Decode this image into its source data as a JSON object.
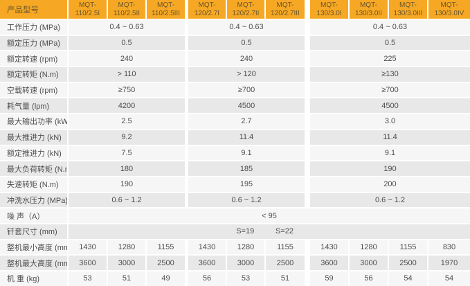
{
  "colors": {
    "header_bg": "#F6A825",
    "header_text": "#6A5729",
    "row_light": "#F6F6F6",
    "row_dark": "#E8E8E8",
    "body_text": "#4D4D4D",
    "separator": "#FFFFFF"
  },
  "table": {
    "header": {
      "label": "产品型号",
      "columns": [
        "MQT-110/2.5I",
        "MQT-110/2.5II",
        "MQT-110/2.5III",
        "MQT-120/2.7I",
        "MQT-120/2.7II",
        "MQT-120/2.7III",
        "MQT-130/3.0I",
        "MQT-130/3.0II",
        "MQT-130/3.0III",
        "MQT-130/3.0IV"
      ]
    },
    "column_groups": [
      "MQT-110/2.5",
      "MQT-120/2.7",
      "MQT-130/3.0"
    ],
    "rows": [
      {
        "label": "工作压力 (MPa)",
        "type": "grouped",
        "values": [
          "0.4 ~ 0.63",
          "0.4 ~ 0.63",
          "0.4 ~ 0.63"
        ]
      },
      {
        "label": "额定压力 (MPa)",
        "type": "grouped",
        "values": [
          "0.5",
          "0.5",
          "0.5"
        ]
      },
      {
        "label": "额定转速 (rpm)",
        "type": "grouped",
        "values": [
          "240",
          "240",
          "225"
        ]
      },
      {
        "label": "额定转矩 (N.m)",
        "type": "grouped",
        "values": [
          "> 110",
          "> 120",
          "≥130"
        ]
      },
      {
        "label": "空载转速 (rpm)",
        "type": "grouped",
        "values": [
          "≥750",
          "≥700",
          "≥700"
        ]
      },
      {
        "label": "耗气量 (lpm)",
        "type": "grouped",
        "values": [
          "4200",
          "4500",
          "4500"
        ]
      },
      {
        "label": "最大输出功率 (kW)",
        "type": "grouped",
        "values": [
          "2.5",
          "2.7",
          "3.0"
        ]
      },
      {
        "label": "最大推进力 (kN)",
        "type": "grouped",
        "values": [
          "9.2",
          "11.4",
          "11.4"
        ]
      },
      {
        "label": "额定推进力 (kN)",
        "type": "grouped",
        "values": [
          "7.5",
          "9.1",
          "9.1"
        ]
      },
      {
        "label": "最大负荷转矩 (N.m)",
        "type": "grouped",
        "values": [
          "180",
          "185",
          "190"
        ]
      },
      {
        "label": "失速转矩 (N.m)",
        "type": "grouped",
        "values": [
          "190",
          "195",
          "200"
        ]
      },
      {
        "label": "冲洗水压力 (MPa)",
        "type": "grouped",
        "values": [
          "0.6 ~ 1.2",
          "0.6 ~ 1.2",
          "0.6 ~ 1.2"
        ]
      },
      {
        "label": "噪 声（A）",
        "type": "full",
        "value": "< 95"
      },
      {
        "label": "钎套尺寸 (mm)",
        "type": "pair",
        "values": [
          "S=19",
          "S=22"
        ]
      },
      {
        "label": "整机最小高度 (mm)",
        "type": "cells",
        "values": [
          "1430",
          "1280",
          "1155",
          "1430",
          "1280",
          "1155",
          "1430",
          "1280",
          "1155",
          "830"
        ]
      },
      {
        "label": "整机最大高度 (mm)",
        "type": "cells",
        "values": [
          "3600",
          "3000",
          "2500",
          "3600",
          "3000",
          "2500",
          "3600",
          "3000",
          "2500",
          "1970"
        ]
      },
      {
        "label": "机 重 (kg)",
        "type": "cells",
        "values": [
          "53",
          "51",
          "49",
          "56",
          "53",
          "51",
          "59",
          "56",
          "54",
          "54"
        ]
      }
    ]
  }
}
